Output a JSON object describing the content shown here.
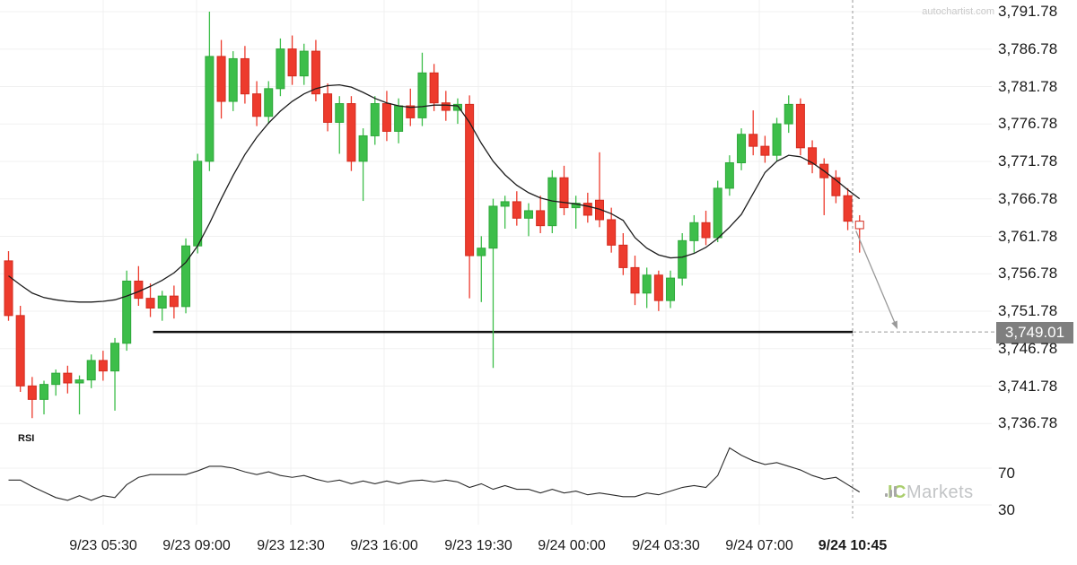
{
  "watermark": "autochartist.com",
  "branding": {
    "ic": "IC",
    "markets": "Markets",
    "bars_color": "#a8a8a8"
  },
  "colors": {
    "up_fill": "#3DBE4A",
    "up_border": "#2EA83A",
    "down_fill": "#ED3B2D",
    "down_border": "#D32B1E",
    "ma_line": "#1d1d1d",
    "rsi_line": "#2b2b2b",
    "support_line": "#111111",
    "dashed": "#999999",
    "arrow": "#999999",
    "grid": "#f0f0f0",
    "label": "#1a1a1a",
    "box_bg": "#7f7f7f",
    "box_text": "#ffffff",
    "watermark": "#c9c9c9"
  },
  "chart_data": {
    "type": "candlestick",
    "title": "",
    "rsi_panel_label": "RSI",
    "price_axis": {
      "labels": [
        "3,791.78",
        "3,786.78",
        "3,781.78",
        "3,776.78",
        "3,771.78",
        "3,766.78",
        "3,761.78",
        "3,756.78",
        "3,751.78",
        "3,746.78",
        "3,741.78",
        "3,736.78"
      ],
      "values": [
        3791.78,
        3786.78,
        3781.78,
        3776.78,
        3771.78,
        3766.78,
        3761.78,
        3756.78,
        3751.78,
        3746.78,
        3741.78,
        3736.78
      ]
    },
    "time_axis": {
      "labels": [
        "9/23 05:30",
        "9/23 09:00",
        "9/23 12:30",
        "9/23 16:00",
        "9/23 19:30",
        "9/24 00:00",
        "9/24 03:30",
        "9/24 07:00",
        "9/24 10:45"
      ],
      "bold_last": true
    },
    "rsi_axis": {
      "labels": [
        "70",
        "30"
      ],
      "values": [
        70,
        30
      ]
    },
    "support_line": {
      "price": 3749.01,
      "label": "3,749.01",
      "start_index": 12
    },
    "forecast_arrow": {
      "from_price": 3762.5,
      "to_price": 3749.01,
      "direction": "down"
    },
    "current_candle_hollow": true,
    "ylim": [
      3734,
      3793
    ],
    "candles": [
      [
        3758.5,
        3759.8,
        3750.5,
        3751.2
      ],
      [
        3751.2,
        3752.5,
        3741.0,
        3741.8
      ],
      [
        3741.8,
        3743.0,
        3737.5,
        3740.0
      ],
      [
        3740.0,
        3742.5,
        3738.0,
        3742.0
      ],
      [
        3742.0,
        3744.0,
        3740.5,
        3743.5
      ],
      [
        3743.5,
        3744.5,
        3740.8,
        3742.2
      ],
      [
        3742.2,
        3743.2,
        3738.0,
        3742.6
      ],
      [
        3742.6,
        3746.0,
        3741.5,
        3745.2
      ],
      [
        3745.2,
        3746.5,
        3742.5,
        3743.8
      ],
      [
        3743.8,
        3748.2,
        3738.5,
        3747.5
      ],
      [
        3747.5,
        3757.2,
        3746.5,
        3755.8
      ],
      [
        3755.8,
        3757.8,
        3752.5,
        3753.5
      ],
      [
        3753.5,
        3755.5,
        3751.0,
        3752.2
      ],
      [
        3752.2,
        3754.5,
        3750.5,
        3753.8
      ],
      [
        3753.8,
        3755.2,
        3750.8,
        3752.4
      ],
      [
        3752.4,
        3761.5,
        3751.5,
        3760.5
      ],
      [
        3760.5,
        3772.8,
        3759.5,
        3771.8
      ],
      [
        3771.8,
        3791.78,
        3770.5,
        3785.8
      ],
      [
        3785.8,
        3788.0,
        3777.5,
        3779.8
      ],
      [
        3779.8,
        3786.5,
        3778.5,
        3785.5
      ],
      [
        3785.5,
        3787.2,
        3779.5,
        3780.8
      ],
      [
        3780.8,
        3782.5,
        3776.5,
        3777.8
      ],
      [
        3777.8,
        3782.5,
        3776.8,
        3781.5
      ],
      [
        3781.5,
        3788.2,
        3780.5,
        3786.8
      ],
      [
        3786.8,
        3788.6,
        3782.0,
        3783.2
      ],
      [
        3783.2,
        3787.5,
        3782.0,
        3786.5
      ],
      [
        3786.5,
        3788.0,
        3779.8,
        3780.8
      ],
      [
        3780.8,
        3782.2,
        3775.8,
        3777.0
      ],
      [
        3777.0,
        3780.5,
        3772.8,
        3779.5
      ],
      [
        3779.5,
        3780.5,
        3770.5,
        3771.8
      ],
      [
        3771.8,
        3776.2,
        3766.5,
        3775.2
      ],
      [
        3775.2,
        3780.5,
        3774.0,
        3779.5
      ],
      [
        3779.5,
        3781.2,
        3774.5,
        3775.8
      ],
      [
        3775.8,
        3780.2,
        3774.2,
        3779.2
      ],
      [
        3779.2,
        3781.5,
        3776.5,
        3777.6
      ],
      [
        3777.6,
        3786.3,
        3776.5,
        3783.6
      ],
      [
        3783.6,
        3784.8,
        3778.5,
        3779.6
      ],
      [
        3779.6,
        3781.2,
        3777.2,
        3778.6
      ],
      [
        3778.6,
        3780.2,
        3776.8,
        3779.4
      ],
      [
        3779.4,
        3780.6,
        3753.5,
        3759.2
      ],
      [
        3759.2,
        3761.8,
        3753.0,
        3760.2
      ],
      [
        3760.2,
        3766.8,
        3744.2,
        3765.8
      ],
      [
        3765.8,
        3767.2,
        3762.8,
        3766.4
      ],
      [
        3766.4,
        3767.8,
        3763.2,
        3764.2
      ],
      [
        3764.2,
        3766.2,
        3761.8,
        3765.2
      ],
      [
        3765.2,
        3767.2,
        3762.2,
        3763.2
      ],
      [
        3763.2,
        3770.6,
        3762.2,
        3769.6
      ],
      [
        3769.6,
        3771.2,
        3764.6,
        3765.6
      ],
      [
        3765.6,
        3767.2,
        3762.8,
        3766.2
      ],
      [
        3766.2,
        3767.6,
        3763.6,
        3764.6
      ],
      [
        3766.6,
        3773.0,
        3763.0,
        3764.0
      ],
      [
        3764.0,
        3765.6,
        3759.6,
        3760.6
      ],
      [
        3760.6,
        3762.2,
        3756.6,
        3757.6
      ],
      [
        3757.6,
        3759.2,
        3752.6,
        3754.2
      ],
      [
        3754.2,
        3757.6,
        3752.2,
        3756.6
      ],
      [
        3756.6,
        3757.2,
        3751.8,
        3753.2
      ],
      [
        3753.2,
        3757.2,
        3752.2,
        3756.2
      ],
      [
        3756.2,
        3762.2,
        3755.2,
        3761.2
      ],
      [
        3761.2,
        3764.6,
        3759.6,
        3763.6
      ],
      [
        3763.6,
        3765.2,
        3760.6,
        3761.6
      ],
      [
        3761.6,
        3769.2,
        3761.0,
        3768.2
      ],
      [
        3768.2,
        3772.6,
        3767.2,
        3771.6
      ],
      [
        3771.6,
        3776.2,
        3770.6,
        3775.4
      ],
      [
        3775.4,
        3778.6,
        3772.6,
        3773.8
      ],
      [
        3773.8,
        3775.2,
        3771.6,
        3772.6
      ],
      [
        3772.6,
        3777.6,
        3771.8,
        3776.8
      ],
      [
        3776.8,
        3780.6,
        3775.6,
        3779.4
      ],
      [
        3779.4,
        3780.2,
        3772.6,
        3773.6
      ],
      [
        3773.6,
        3774.6,
        3770.2,
        3771.4
      ],
      [
        3771.4,
        3772.2,
        3764.6,
        3769.6
      ],
      [
        3769.6,
        3770.6,
        3766.2,
        3767.2
      ],
      [
        3767.2,
        3768.2,
        3762.6,
        3763.8
      ],
      [
        3763.8,
        3764.6,
        3759.6,
        3762.8
      ]
    ],
    "ma": [
      3756.5,
      3755.3,
      3754.2,
      3753.6,
      3753.3,
      3753.1,
      3753.0,
      3753.0,
      3753.1,
      3753.3,
      3753.8,
      3754.4,
      3755.1,
      3755.9,
      3756.9,
      3758.3,
      3760.5,
      3763.5,
      3766.8,
      3769.9,
      3772.7,
      3775.0,
      3776.9,
      3778.5,
      3779.8,
      3780.8,
      3781.5,
      3781.9,
      3782.0,
      3781.7,
      3781.0,
      3780.2,
      3779.6,
      3779.2,
      3779.0,
      3779.1,
      3779.3,
      3779.3,
      3779.2,
      3777.0,
      3774.2,
      3771.8,
      3770.0,
      3768.6,
      3767.6,
      3766.9,
      3766.5,
      3766.3,
      3766.1,
      3765.8,
      3765.4,
      3764.8,
      3763.9,
      3761.6,
      3760.2,
      3759.3,
      3758.9,
      3759.0,
      3759.5,
      3760.3,
      3761.5,
      3763.0,
      3764.7,
      3767.5,
      3770.3,
      3771.8,
      3772.6,
      3772.4,
      3771.6,
      3770.5,
      3769.3,
      3768.0,
      3766.8
    ],
    "rsi": [
      57,
      57,
      50,
      44,
      38,
      35,
      40,
      35,
      40,
      38,
      52,
      60,
      63,
      63,
      63,
      63,
      67,
      72,
      72,
      70,
      66,
      63,
      66,
      62,
      60,
      62,
      58,
      55,
      57,
      53,
      56,
      53,
      56,
      53,
      56,
      57,
      55,
      57,
      55,
      49,
      53,
      47,
      51,
      47,
      47,
      43,
      47,
      43,
      45,
      41,
      43,
      41,
      39,
      39,
      43,
      41,
      45,
      49,
      51,
      49,
      62,
      92,
      84,
      78,
      74,
      76,
      72,
      68,
      62,
      58,
      60,
      52,
      44
    ]
  }
}
